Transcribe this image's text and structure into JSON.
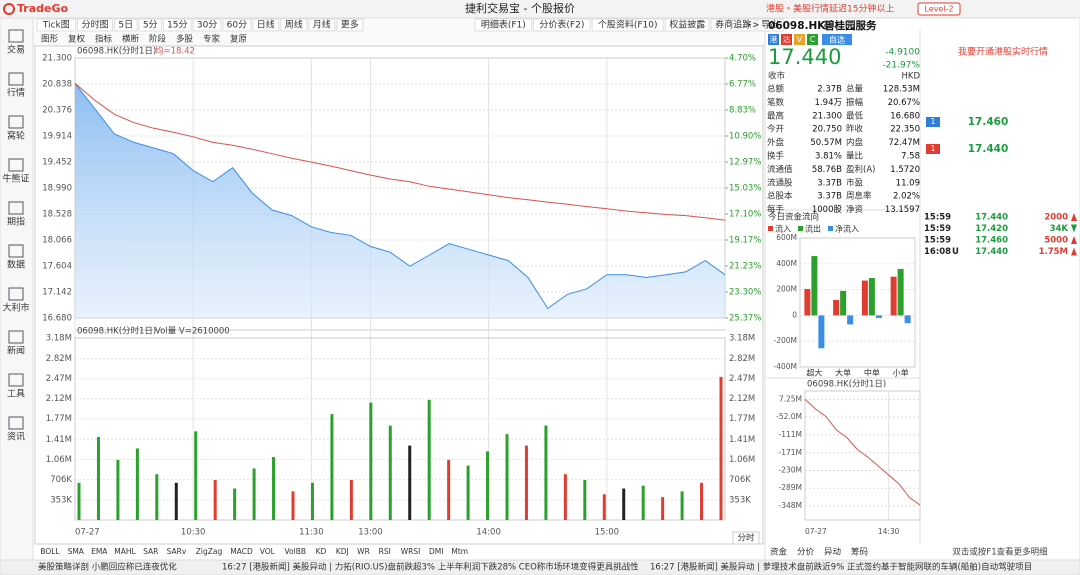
{
  "app": {
    "logo": "TradeGo",
    "title": "捷利交易宝 - 个股报价",
    "market_notice": "港股・美股行情延迟15分钟以上",
    "level": "Level-2"
  },
  "period_tabs": [
    "Tick图",
    "分时图",
    "5日",
    "5分",
    "15分",
    "30分",
    "60分",
    "日线",
    "周线",
    "月线",
    "更多"
  ],
  "more_arrow": ">>",
  "tool_tabs": [
    "明细表(F1)",
    "分价表(F2)",
    "个股资料(F10)",
    "权益披露",
    "券商追踪",
    "导出"
  ],
  "sub_tabs": [
    "图形",
    "复权",
    "指标",
    "横断",
    "阶段",
    "多股",
    "专家",
    "复原"
  ],
  "sidebar": [
    "交易",
    "行情",
    "窝轮",
    "牛熊证",
    "期指",
    "数据",
    "大利市",
    "新闻",
    "工具",
    "资讯"
  ],
  "indicator_tabs": [
    "BOLL",
    "SMA",
    "EMA",
    "MAHL",
    "SAR",
    "SARv",
    "ZigZag",
    "MACD",
    "VOL",
    "VolBB",
    "KD",
    "KDJ",
    "WR",
    "RSI",
    "WRSI",
    "DMI",
    "Mtm"
  ],
  "period_button": "分时",
  "quote": {
    "code": "06098.HK",
    "name": "碧桂园服务",
    "badges": [
      "港",
      "沽",
      "V",
      "C"
    ],
    "watch": "自选",
    "price": "17.440",
    "change": "-4.9100",
    "change_pct": "-21.97%",
    "status": "收市",
    "currency": "HKD",
    "realtime_link": "我要开通港股实时行情",
    "rows": [
      [
        "总额",
        "2.37B",
        "总量",
        "128.53M"
      ],
      [
        "笔数",
        "1.94万",
        "振幅",
        "20.67%"
      ],
      [
        "最高",
        "21.300",
        "最低",
        "16.680"
      ],
      [
        "今开",
        "20.750",
        "昨收",
        "22.350"
      ],
      [
        "外盘",
        "50.57M",
        "内盘",
        "72.47M"
      ],
      [
        "换手",
        "3.81%",
        "量比",
        "7.58"
      ],
      [
        "流通值",
        "58.76B",
        "盈利(A)",
        "1.5720"
      ],
      [
        "流通股",
        "3.37B",
        "市盈",
        "11.09"
      ],
      [
        "总股本",
        "3.37B",
        "周息率",
        "2.02%"
      ],
      [
        "每手",
        "1000股",
        "净资",
        "13.1597"
      ]
    ]
  },
  "order_book": [
    {
      "level": "1",
      "price": "17.460",
      "color": "#2f7fd6"
    },
    {
      "level": "1",
      "price": "17.440",
      "color": "#e03c31"
    }
  ],
  "trades": [
    {
      "time": "15:59",
      "flag": "",
      "price": "17.440",
      "volume": "2000",
      "dir": "up"
    },
    {
      "time": "15:59",
      "flag": "",
      "price": "17.420",
      "volume": "34K",
      "dir": "down"
    },
    {
      "time": "15:59",
      "flag": "",
      "price": "17.460",
      "volume": "5000",
      "dir": "up"
    },
    {
      "time": "16:08",
      "flag": "U",
      "price": "17.440",
      "volume": "1.75M",
      "dir": "up"
    }
  ],
  "detail_tabs": [
    "资金",
    "分价",
    "异动",
    "筹码"
  ],
  "detail_hint": "双击或按F1查看更多明细",
  "status": {
    "left": "美股策略详剖 小鹏回应称已连夜优化",
    "news": [
      "16:27 [港股新闻] 美股异动 | 力拓(RIO.US)盘前跌超3% 上半年利润下跌28% CEO称市场环境变得更具挑战性",
      "16:27 [港股新闻] 美股异动 | 萝理技术盘前跌近9% 正式签约基于智能网联的车辆(船舶)自动驾驶项目"
    ]
  },
  "chart_data": [
    {
      "type": "line",
      "title": "06098.HK(分时1日)",
      "subtitle": "均=18.42",
      "grid": true,
      "x": [
        0,
        10,
        20,
        30,
        40,
        50,
        60,
        70,
        80,
        90,
        100,
        110,
        120,
        130,
        140,
        150,
        160,
        170,
        180,
        190,
        200,
        210,
        220,
        230,
        240,
        250,
        260,
        270,
        280,
        290,
        300,
        310,
        320,
        330
      ],
      "xlim": [
        0,
        330
      ],
      "xticks": [
        {
          "value": 0,
          "label": "07-27"
        },
        {
          "value": 60,
          "label": "10:30"
        },
        {
          "value": 120,
          "label": "11:30"
        },
        {
          "value": 150,
          "label": "13:00"
        },
        {
          "value": 210,
          "label": "14:00"
        },
        {
          "value": 270,
          "label": "15:00"
        }
      ],
      "ylim": [
        16.68,
        21.3
      ],
      "yticks": [
        {
          "value": 21.3,
          "label": "21.300"
        },
        20.838,
        20.376,
        19.914,
        19.452,
        {
          "value": 18.99,
          "label": "18.990"
        },
        18.528,
        18.066,
        17.604,
        17.142,
        {
          "value": 16.68,
          "label": "16.680"
        }
      ],
      "y2lim": [
        25.37,
        4.7
      ],
      "y2ticks": [
        {
          "value": 4.7,
          "label": "4.70%"
        },
        {
          "value": 6.77,
          "label": "6.77%"
        },
        {
          "value": 8.83,
          "label": "8.83%"
        },
        {
          "value": 10.9,
          "label": "10.90%"
        },
        {
          "value": 12.97,
          "label": "12.97%"
        },
        {
          "value": 15.03,
          "label": "15.03%"
        },
        {
          "value": 17.1,
          "label": "17.10%"
        },
        {
          "value": 19.17,
          "label": "19.17%"
        },
        {
          "value": 21.23,
          "label": "21.23%"
        },
        {
          "value": 23.3,
          "label": "23.30%"
        },
        {
          "value": 25.37,
          "label": "25.37%"
        }
      ],
      "series": [
        {
          "color": "#3a8ee6",
          "values": [
            20.85,
            20.4,
            19.95,
            19.8,
            19.7,
            19.6,
            19.3,
            19.1,
            19.35,
            18.9,
            18.6,
            18.5,
            18.3,
            18.2,
            18.15,
            17.95,
            17.85,
            17.6,
            17.8,
            18.0,
            17.9,
            17.8,
            17.7,
            17.4,
            16.85,
            17.1,
            17.2,
            17.45,
            17.45,
            17.4,
            17.45,
            17.5,
            17.7,
            17.45
          ]
        },
        {
          "color": "#d9534f",
          "values": [
            20.85,
            20.55,
            20.3,
            20.15,
            20.05,
            19.98,
            19.9,
            19.8,
            19.75,
            19.68,
            19.6,
            19.52,
            19.45,
            19.38,
            19.3,
            19.22,
            19.15,
            19.1,
            19.02,
            18.97,
            18.92,
            18.87,
            18.82,
            18.78,
            18.74,
            18.7,
            18.66,
            18.62,
            18.58,
            18.55,
            18.52,
            18.5,
            18.46,
            18.42
          ]
        }
      ]
    },
    {
      "type": "bar",
      "title": "06098.HK(分时1日)",
      "subtitle": "Vol量 V=2610000",
      "grid": true,
      "x": [
        0,
        10,
        20,
        30,
        40,
        50,
        60,
        70,
        80,
        90,
        100,
        110,
        120,
        130,
        140,
        150,
        160,
        170,
        180,
        190,
        200,
        210,
        220,
        230,
        240,
        250,
        260,
        270,
        280,
        290,
        300,
        310,
        320,
        330
      ],
      "xlim": [
        0,
        330
      ],
      "ylim": [
        0,
        3180000
      ],
      "yticks": [
        {
          "value": 353000,
          "label": "353K"
        },
        {
          "value": 706000,
          "label": "706K"
        },
        {
          "value": 1060000,
          "label": "1.06M"
        },
        {
          "value": 1410000,
          "label": "1.41M"
        },
        {
          "value": 1770000,
          "label": "1.77M"
        },
        {
          "value": 2120000,
          "label": "2.12M"
        },
        {
          "value": 2470000,
          "label": "2.47M"
        },
        {
          "value": 2820000,
          "label": "2.82M"
        },
        {
          "value": 3180000,
          "label": "3.18M"
        }
      ],
      "values": [
        650000,
        1450000,
        1050000,
        1250000,
        800000,
        650000,
        1550000,
        700000,
        550000,
        900000,
        1100000,
        500000,
        650000,
        1850000,
        700000,
        2050000,
        1650000,
        1300000,
        2100000,
        1050000,
        950000,
        1200000,
        1500000,
        1300000,
        1650000,
        800000,
        700000,
        450000,
        550000,
        600000,
        400000,
        500000,
        650000,
        2500000
      ],
      "colors": [
        "#2ca02c",
        "#2ca02c",
        "#2ca02c",
        "#2ca02c",
        "#2ca02c",
        "#222222",
        "#2ca02c",
        "#e03c31",
        "#2ca02c",
        "#2ca02c",
        "#2ca02c",
        "#e03c31",
        "#2ca02c",
        "#2ca02c",
        "#e03c31",
        "#2ca02c",
        "#2ca02c",
        "#222222",
        "#2ca02c",
        "#e03c31",
        "#2ca02c",
        "#2ca02c",
        "#2ca02c",
        "#e03c31",
        "#2ca02c",
        "#e03c31",
        "#2ca02c",
        "#e03c31",
        "#222222",
        "#2ca02c",
        "#e03c31",
        "#2ca02c",
        "#e03c31",
        "#e03c31"
      ]
    },
    {
      "type": "bar",
      "title": "今日资金流向",
      "categories": [
        "超大",
        "大单",
        "中单",
        "小单"
      ],
      "ylim": [
        -400,
        600
      ],
      "yticks": [
        {
          "value": 600,
          "label": "600M"
        },
        {
          "value": 400,
          "label": "400M"
        },
        {
          "value": 200,
          "label": "200M"
        },
        0,
        {
          "value": -200,
          "label": "-200M"
        },
        {
          "value": -400,
          "label": "-400M"
        }
      ],
      "series": [
        {
          "name": "流入",
          "color": "#e03c31",
          "values": [
            205,
            120,
            270,
            300
          ]
        },
        {
          "name": "流出",
          "color": "#2ca02c",
          "values": [
            460,
            190,
            290,
            360
          ]
        },
        {
          "name": "净流入",
          "color": "#3a8ee6",
          "values": [
            -255,
            -70,
            -20,
            -60
          ]
        }
      ]
    },
    {
      "type": "line",
      "title": "06098.HK(分时1日)",
      "x": [
        0,
        30,
        60,
        90,
        120,
        150,
        180,
        210,
        240,
        270,
        300,
        330
      ],
      "xlim": [
        0,
        330
      ],
      "xticks": [
        {
          "value": 0,
          "label": "07-27"
        },
        {
          "value": 240,
          "label": "14:30"
        }
      ],
      "ylim": [
        -395,
        35
      ],
      "yticks": [
        {
          "value": 7.25,
          "label": "7.25M"
        },
        {
          "value": -52,
          "label": "-52.0M"
        },
        {
          "value": -111,
          "label": "-111M"
        },
        {
          "value": -171,
          "label": "-171M"
        },
        {
          "value": -230,
          "label": "-230M"
        },
        {
          "value": -289,
          "label": "-289M"
        },
        {
          "value": -348,
          "label": "-348M"
        }
      ],
      "series": [
        {
          "color": "#d9534f",
          "values": [
            7,
            -25,
            -50,
            -95,
            -120,
            -160,
            -185,
            -215,
            -245,
            -275,
            -320,
            -345
          ]
        }
      ]
    }
  ]
}
